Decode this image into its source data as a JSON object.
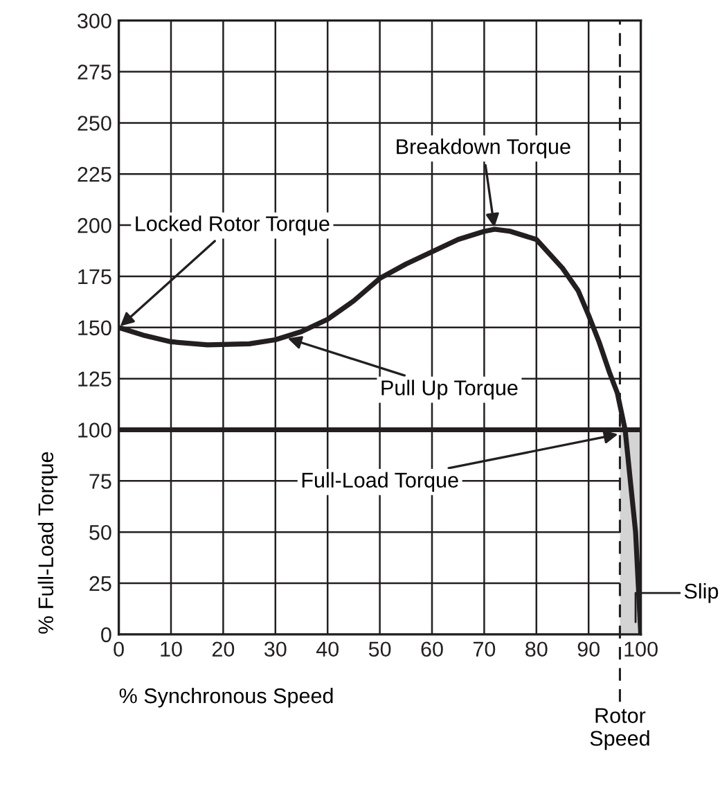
{
  "chart_data": {
    "type": "line",
    "xlabel": "% Synchronous Speed",
    "ylabel": "% Full-Load Torque",
    "x": [
      0,
      5,
      10,
      17,
      25,
      30,
      35,
      40,
      45,
      50,
      55,
      60,
      65,
      70,
      72,
      75,
      80,
      85,
      88,
      90,
      92,
      94,
      95.5,
      97,
      98,
      99,
      100
    ],
    "series": [
      {
        "color": "#231f20",
        "values": [
          150,
          146,
          143,
          141.5,
          142,
          144,
          148,
          154,
          163,
          174,
          181,
          187,
          193,
          197,
          198,
          197,
          193,
          179,
          168,
          156,
          143,
          128,
          118,
          100,
          75,
          50,
          0
        ]
      }
    ],
    "xlim": [
      0,
      100
    ],
    "xticks": [
      0,
      10,
      20,
      30,
      40,
      50,
      60,
      70,
      80,
      90,
      100
    ],
    "ylim": [
      0,
      300
    ],
    "yticks": [
      0,
      25,
      50,
      75,
      100,
      125,
      150,
      175,
      200,
      225,
      250,
      275,
      300
    ],
    "grid": true,
    "marker": "none",
    "line_style": "solid",
    "ref_lines": [
      {
        "axis": "y",
        "value": 100,
        "label": "Full-Load Torque",
        "color": "#231f20",
        "line_style": "solid"
      },
      {
        "axis": "x",
        "value": 96,
        "label": "Rotor\nSpeed",
        "color": "#231f20",
        "line_style": "dashed"
      }
    ],
    "bands": [
      {
        "axis": "x",
        "from": 96,
        "to": 100,
        "label": "Slip",
        "color": "#d4d4d4"
      }
    ],
    "annotations": [
      {
        "text": "Locked Rotor Torque",
        "x": 0,
        "y": 150
      },
      {
        "text": "Pull Up Torque",
        "x": 32,
        "y": 145
      },
      {
        "text": "Breakdown Torque",
        "x": 72,
        "y": 198
      }
    ]
  }
}
